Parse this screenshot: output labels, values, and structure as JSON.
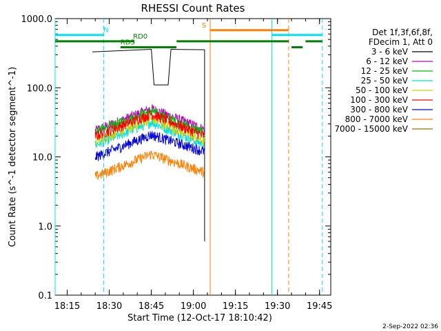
{
  "chart_data": {
    "type": "line",
    "title": "RHESSI Count Rates",
    "xlabel": "Start Time (12-Oct-17 18:10:42)",
    "ylabel": "Count Rate (s^-1 detector segment^-1)",
    "ylog": true,
    "ylim": [
      0.1,
      1000
    ],
    "xlim_minutes": [
      18.1,
      19.82
    ],
    "x_ticks": [
      "18:15",
      "18:30",
      "18:45",
      "19:00",
      "19:15",
      "19:30",
      "19:45"
    ],
    "y_ticks": [
      "0.1",
      "1.0",
      "10.0",
      "100.0",
      "1000.0"
    ],
    "legend_header": [
      "Det 1f,3f,6f,8f,",
      "FDecim 1, Att 0"
    ],
    "series": [
      {
        "name": "3 - 6 keV",
        "color": "#000000",
        "points": [
          [
            "18:24",
            330
          ],
          [
            "18:45",
            360
          ],
          [
            "18:46",
            110
          ],
          [
            "18:51",
            110
          ],
          [
            "18:52",
            360
          ],
          [
            "19:04",
            355
          ],
          [
            "19:04",
            0.6
          ]
        ]
      },
      {
        "name": "6 - 12 keV",
        "color": "#c000c0",
        "points": [
          [
            "18:25",
            24
          ],
          [
            "18:45",
            50
          ],
          [
            "19:04",
            25
          ]
        ]
      },
      {
        "name": "12 - 25 keV",
        "color": "#00c000",
        "points": [
          [
            "18:25",
            23
          ],
          [
            "18:45",
            46
          ],
          [
            "19:04",
            22
          ]
        ]
      },
      {
        "name": "25 - 50 keV",
        "color": "#00e0e0",
        "points": [
          [
            "18:25",
            15
          ],
          [
            "18:45",
            32
          ],
          [
            "19:04",
            15
          ]
        ]
      },
      {
        "name": "50 - 100 keV",
        "color": "#d0d000",
        "points": [
          [
            "18:25",
            17
          ],
          [
            "18:45",
            36
          ],
          [
            "19:04",
            17
          ]
        ]
      },
      {
        "name": "100 - 300 keV",
        "color": "#ff0000",
        "points": [
          [
            "18:25",
            20
          ],
          [
            "18:45",
            42
          ],
          [
            "19:04",
            20
          ]
        ]
      },
      {
        "name": "300 - 800 keV",
        "color": "#0000e0",
        "points": [
          [
            "18:25",
            10
          ],
          [
            "18:45",
            21
          ],
          [
            "19:04",
            12
          ]
        ]
      },
      {
        "name": "800 - 7000 keV",
        "color": "#ff8000",
        "points": [
          [
            "18:25",
            5.2
          ],
          [
            "18:45",
            11
          ],
          [
            "19:04",
            6
          ]
        ]
      },
      {
        "name": "7000 - 15000 keV",
        "color": "#a07000",
        "points": []
      }
    ],
    "bars": [
      {
        "label": "N",
        "color": "#00e0ff",
        "level": 580,
        "spans": [
          [
            "18:10",
            "18:28"
          ],
          [
            "19:28",
            "19:46"
          ]
        ]
      },
      {
        "label": "S",
        "color": "#ff8000",
        "level": 680,
        "spans": [
          [
            "19:06",
            "19:34"
          ]
        ]
      },
      {
        "label": "RD0",
        "color": "#008000",
        "level": 470,
        "spans": [
          [
            "18:10",
            "18:39"
          ],
          [
            "18:54",
            "19:34"
          ],
          [
            "19:40",
            "19:46"
          ]
        ]
      },
      {
        "label": "RD5",
        "color": "#008000",
        "level": 385,
        "spans": [
          [
            "18:34",
            "18:54"
          ]
        ]
      },
      {
        "label": "",
        "color": "#008000",
        "level": 385,
        "spans": [
          [
            "19:35",
            "19:39"
          ]
        ]
      }
    ],
    "vlines": [
      {
        "time": "18:10.7",
        "color": "#00e0ff",
        "style": "solid"
      },
      {
        "time": "18:28",
        "color": "#00e0ff",
        "style": "dashed"
      },
      {
        "time": "19:06",
        "color": "#ff8000",
        "style": "solid"
      },
      {
        "time": "19:28",
        "color": "#00e0ff",
        "style": "solid"
      },
      {
        "time": "19:34",
        "color": "#ff8000",
        "style": "dashed"
      },
      {
        "time": "19:46",
        "color": "#00e0ff",
        "style": "dashed"
      }
    ]
  },
  "footer_date": "2-Sep-2022 02:36"
}
